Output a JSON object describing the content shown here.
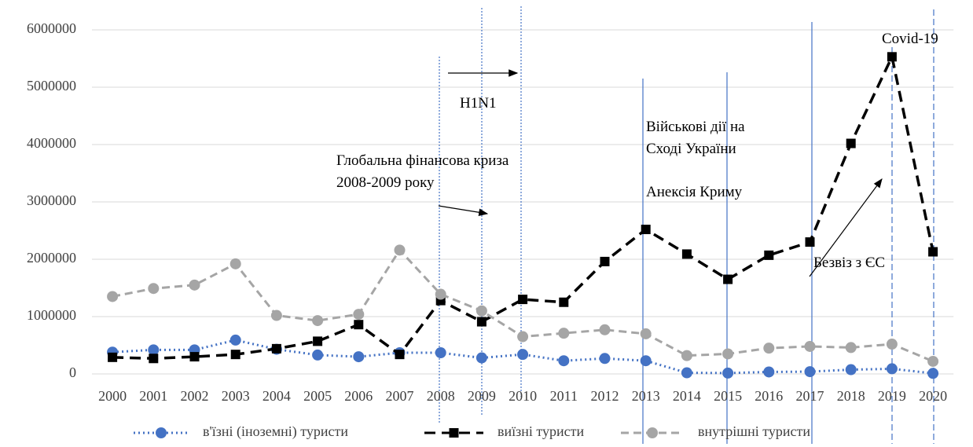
{
  "chart_data": {
    "type": "line",
    "categories": [
      "2000",
      "2001",
      "2002",
      "2003",
      "2004",
      "2005",
      "2006",
      "2007",
      "2008",
      "2009",
      "2010",
      "2011",
      "2012",
      "2013",
      "2014",
      "2015",
      "2016",
      "2017",
      "2018",
      "2019",
      "2020"
    ],
    "series": [
      {
        "name": "в'їзні (іноземні) туристи",
        "color": "#4472c4",
        "style": "dotted",
        "marker": "circle",
        "values": [
          380000,
          420000,
          420000,
          590000,
          430000,
          330000,
          300000,
          370000,
          370000,
          280000,
          340000,
          230000,
          270000,
          230000,
          20000,
          15000,
          35000,
          40000,
          75000,
          90000,
          10000
        ]
      },
      {
        "name": "виїзні туристи",
        "color": "#000000",
        "style": "dashed",
        "marker": "square",
        "values": [
          290000,
          270000,
          300000,
          340000,
          440000,
          570000,
          860000,
          340000,
          1280000,
          910000,
          1300000,
          1250000,
          1960000,
          2520000,
          2090000,
          1650000,
          2070000,
          2300000,
          4020000,
          5530000,
          2130000
        ]
      },
      {
        "name": "внутрішні туристи",
        "color": "#a5a5a5",
        "style": "dashed",
        "marker": "circle",
        "values": [
          1350000,
          1490000,
          1550000,
          1920000,
          1020000,
          930000,
          1040000,
          2160000,
          1390000,
          1100000,
          650000,
          710000,
          770000,
          700000,
          320000,
          350000,
          450000,
          480000,
          460000,
          520000,
          220000
        ]
      }
    ],
    "ylim": [
      0,
      6000000
    ],
    "yticks": [
      0,
      1000000,
      2000000,
      3000000,
      4000000,
      5000000,
      6000000
    ],
    "grid": true,
    "legend": "bottom",
    "annotations": [
      "H1N1",
      "Глобальна фінансова криза",
      "2008-2009 року",
      "Військові дії на",
      "Сході України",
      "Анексія Криму",
      "Безвіз з ЄС",
      "Covid-19"
    ]
  }
}
